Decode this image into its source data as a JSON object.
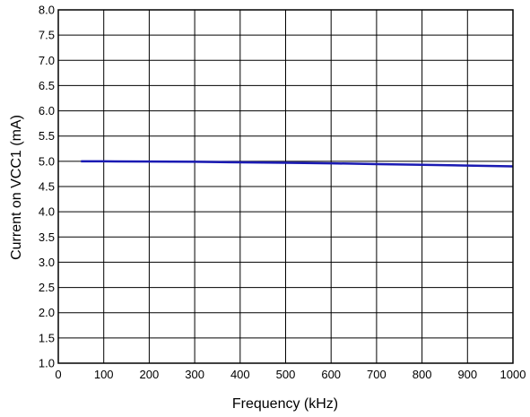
{
  "chart_data": {
    "type": "line",
    "title": "",
    "xlabel": "Frequency (kHz)",
    "ylabel": "Current on VCC1 (mA)",
    "xlim": [
      0,
      1000
    ],
    "ylim": [
      1.0,
      8.0
    ],
    "x_ticks": [
      "0",
      "100",
      "200",
      "300",
      "400",
      "500",
      "600",
      "700",
      "800",
      "900",
      "1000"
    ],
    "y_ticks": [
      "1.0",
      "1.5",
      "2.0",
      "2.5",
      "3.0",
      "3.5",
      "4.0",
      "4.5",
      "5.0",
      "5.5",
      "6.0",
      "6.5",
      "7.0",
      "7.5",
      "8.0"
    ],
    "grid": true,
    "series": [
      {
        "color": "#1a1ab3",
        "x": [
          50,
          100,
          200,
          300,
          400,
          500,
          600,
          700,
          800,
          900,
          1000
        ],
        "y": [
          5.0,
          5.0,
          4.995,
          4.99,
          4.98,
          4.97,
          4.96,
          4.945,
          4.93,
          4.915,
          4.9
        ]
      }
    ]
  }
}
